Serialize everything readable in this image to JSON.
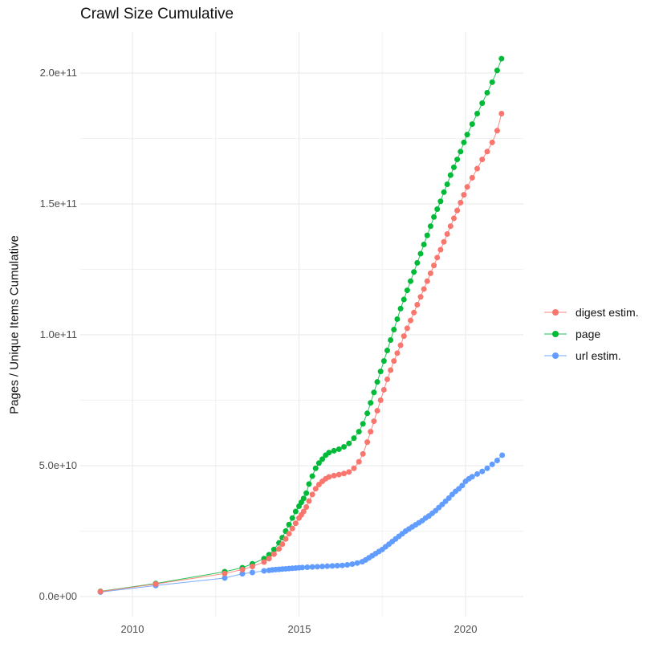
{
  "title": "Crawl Size Cumulative",
  "axes": {
    "y": {
      "title": "Pages / Unique Items Cumulative",
      "tick_labels": [
        "0.0e+00",
        "5.0e+10",
        "1.0e+11",
        "1.5e+11",
        "2.0e+11"
      ],
      "tick_values": [
        0,
        50000000000.0,
        100000000000.0,
        150000000000.0,
        200000000000.0
      ],
      "minor_values": [
        25000000000.0,
        75000000000.0,
        125000000000.0,
        175000000000.0
      ]
    },
    "x": {
      "tick_labels": [
        "2010",
        "2015",
        "2020"
      ],
      "tick_values": [
        2010,
        2015,
        2020
      ],
      "minor_values": [
        2012.5,
        2017.5
      ]
    }
  },
  "legend": {
    "items": [
      {
        "label": "digest estim.",
        "color": "#F8766D"
      },
      {
        "label": "page",
        "color": "#00BA38"
      },
      {
        "label": "url estim.",
        "color": "#619CFF"
      }
    ]
  },
  "colors": {
    "grid_major": "#e7e7e7",
    "grid_minor": "#f2f2f2",
    "background": "#ffffff"
  },
  "chart_data": {
    "type": "scatter",
    "title": "Crawl Size Cumulative",
    "xlabel": "",
    "ylabel": "Pages / Unique Items Cumulative",
    "xlim": [
      2008.4,
      2021.7
    ],
    "ylim": [
      0,
      216000000000.0
    ],
    "grid": true,
    "legend_position": "right",
    "series": [
      {
        "name": "digest estim.",
        "color": "#F8766D",
        "points": [
          [
            2009.04,
            1900000000.0
          ],
          [
            2010.7,
            4800000000.0
          ],
          [
            2012.77,
            8800000000.0
          ],
          [
            2013.3,
            10300000000.0
          ],
          [
            2013.6,
            11500000000.0
          ],
          [
            2013.95,
            13200000000.0
          ],
          [
            2014.1,
            14500000000.0
          ],
          [
            2014.25,
            16200000000.0
          ],
          [
            2014.4,
            18200000000.0
          ],
          [
            2014.5,
            20000000000.0
          ],
          [
            2014.6,
            22000000000.0
          ],
          [
            2014.7,
            24000000000.0
          ],
          [
            2014.8,
            26000000000.0
          ],
          [
            2014.9,
            28000000000.0
          ],
          [
            2015.0,
            30000000000.0
          ],
          [
            2015.07,
            31200000000.0
          ],
          [
            2015.14,
            32500000000.0
          ],
          [
            2015.22,
            34200000000.0
          ],
          [
            2015.3,
            36500000000.0
          ],
          [
            2015.4,
            39000000000.0
          ],
          [
            2015.5,
            41200000000.0
          ],
          [
            2015.6,
            42800000000.0
          ],
          [
            2015.7,
            44000000000.0
          ],
          [
            2015.8,
            45000000000.0
          ],
          [
            2015.9,
            45700000000.0
          ],
          [
            2016.05,
            46200000000.0
          ],
          [
            2016.2,
            46600000000.0
          ],
          [
            2016.35,
            47000000000.0
          ],
          [
            2016.5,
            47600000000.0
          ],
          [
            2016.65,
            49000000000.0
          ],
          [
            2016.8,
            51500000000.0
          ],
          [
            2016.92,
            54500000000.0
          ],
          [
            2017.05,
            59000000000.0
          ],
          [
            2017.15,
            63000000000.0
          ],
          [
            2017.25,
            67000000000.0
          ],
          [
            2017.35,
            71000000000.0
          ],
          [
            2017.45,
            75000000000.0
          ],
          [
            2017.55,
            79000000000.0
          ],
          [
            2017.65,
            83000000000.0
          ],
          [
            2017.75,
            86500000000.0
          ],
          [
            2017.85,
            90000000000.0
          ],
          [
            2017.95,
            93000000000.0
          ],
          [
            2018.05,
            96000000000.0
          ],
          [
            2018.15,
            99500000000.0
          ],
          [
            2018.25,
            102500000000.0
          ],
          [
            2018.35,
            105500000000.0
          ],
          [
            2018.45,
            108500000000.0
          ],
          [
            2018.55,
            111500000000.0
          ],
          [
            2018.65,
            114500000000.0
          ],
          [
            2018.75,
            117500000000.0
          ],
          [
            2018.85,
            120500000000.0
          ],
          [
            2018.95,
            123500000000.0
          ],
          [
            2019.05,
            126500000000.0
          ],
          [
            2019.15,
            129500000000.0
          ],
          [
            2019.25,
            132500000000.0
          ],
          [
            2019.35,
            135500000000.0
          ],
          [
            2019.45,
            138500000000.0
          ],
          [
            2019.55,
            141500000000.0
          ],
          [
            2019.65,
            144500000000.0
          ],
          [
            2019.75,
            147500000000.0
          ],
          [
            2019.85,
            150500000000.0
          ],
          [
            2019.95,
            153500000000.0
          ],
          [
            2020.05,
            156500000000.0
          ],
          [
            2020.2,
            160000000000.0
          ],
          [
            2020.35,
            163500000000.0
          ],
          [
            2020.5,
            167000000000.0
          ],
          [
            2020.65,
            170000000000.0
          ],
          [
            2020.8,
            173500000000.0
          ],
          [
            2020.95,
            178000000000.0
          ],
          [
            2021.08,
            184500000000.0
          ]
        ]
      },
      {
        "name": "page",
        "color": "#00BA38",
        "points": [
          [
            2009.04,
            2000000000.0
          ],
          [
            2010.7,
            5000000000.0
          ],
          [
            2012.77,
            9500000000.0
          ],
          [
            2013.3,
            11000000000.0
          ],
          [
            2013.6,
            12500000000.0
          ],
          [
            2013.95,
            14500000000.0
          ],
          [
            2014.1,
            16000000000.0
          ],
          [
            2014.25,
            18000000000.0
          ],
          [
            2014.4,
            20500000000.0
          ],
          [
            2014.5,
            22500000000.0
          ],
          [
            2014.6,
            25000000000.0
          ],
          [
            2014.7,
            27500000000.0
          ],
          [
            2014.8,
            30000000000.0
          ],
          [
            2014.9,
            32500000000.0
          ],
          [
            2015.0,
            34500000000.0
          ],
          [
            2015.07,
            36000000000.0
          ],
          [
            2015.14,
            37500000000.0
          ],
          [
            2015.22,
            39500000000.0
          ],
          [
            2015.3,
            43000000000.0
          ],
          [
            2015.4,
            46000000000.0
          ],
          [
            2015.5,
            49000000000.0
          ],
          [
            2015.6,
            51000000000.0
          ],
          [
            2015.7,
            52500000000.0
          ],
          [
            2015.8,
            54000000000.0
          ],
          [
            2015.9,
            55000000000.0
          ],
          [
            2016.05,
            55700000000.0
          ],
          [
            2016.2,
            56300000000.0
          ],
          [
            2016.35,
            57200000000.0
          ],
          [
            2016.5,
            58500000000.0
          ],
          [
            2016.65,
            60500000000.0
          ],
          [
            2016.8,
            63000000000.0
          ],
          [
            2016.92,
            66000000000.0
          ],
          [
            2017.05,
            70000000000.0
          ],
          [
            2017.15,
            74000000000.0
          ],
          [
            2017.25,
            78000000000.0
          ],
          [
            2017.35,
            82000000000.0
          ],
          [
            2017.45,
            86000000000.0
          ],
          [
            2017.55,
            90000000000.0
          ],
          [
            2017.65,
            94000000000.0
          ],
          [
            2017.75,
            98000000000.0
          ],
          [
            2017.85,
            102000000000.0
          ],
          [
            2017.95,
            106000000000.0
          ],
          [
            2018.05,
            110000000000.0
          ],
          [
            2018.15,
            113500000000.0
          ],
          [
            2018.25,
            117000000000.0
          ],
          [
            2018.35,
            120500000000.0
          ],
          [
            2018.45,
            124000000000.0
          ],
          [
            2018.55,
            127500000000.0
          ],
          [
            2018.65,
            131000000000.0
          ],
          [
            2018.75,
            134500000000.0
          ],
          [
            2018.85,
            138000000000.0
          ],
          [
            2018.95,
            141500000000.0
          ],
          [
            2019.05,
            145000000000.0
          ],
          [
            2019.15,
            148000000000.0
          ],
          [
            2019.25,
            151000000000.0
          ],
          [
            2019.35,
            154500000000.0
          ],
          [
            2019.45,
            157500000000.0
          ],
          [
            2019.55,
            161000000000.0
          ],
          [
            2019.65,
            164000000000.0
          ],
          [
            2019.75,
            167000000000.0
          ],
          [
            2019.85,
            170000000000.0
          ],
          [
            2019.95,
            173500000000.0
          ],
          [
            2020.05,
            176500000000.0
          ],
          [
            2020.2,
            180500000000.0
          ],
          [
            2020.35,
            184500000000.0
          ],
          [
            2020.5,
            188500000000.0
          ],
          [
            2020.65,
            192500000000.0
          ],
          [
            2020.8,
            196500000000.0
          ],
          [
            2020.95,
            201000000000.0
          ],
          [
            2021.08,
            205500000000.0
          ]
        ]
      },
      {
        "name": "url estim.",
        "color": "#619CFF",
        "points": [
          [
            2009.04,
            1700000000.0
          ],
          [
            2010.7,
            4200000000.0
          ],
          [
            2012.77,
            7100000000.0
          ],
          [
            2013.3,
            8700000000.0
          ],
          [
            2013.6,
            9200000000.0
          ],
          [
            2013.95,
            9800000000.0
          ],
          [
            2014.1,
            10000000000.0
          ],
          [
            2014.2,
            10200000000.0
          ],
          [
            2014.3,
            10300000000.0
          ],
          [
            2014.4,
            10400000000.0
          ],
          [
            2014.5,
            10500000000.0
          ],
          [
            2014.6,
            10600000000.0
          ],
          [
            2014.7,
            10700000000.0
          ],
          [
            2014.8,
            10800000000.0
          ],
          [
            2014.9,
            10900000000.0
          ],
          [
            2015.0,
            11000000000.0
          ],
          [
            2015.1,
            11100000000.0
          ],
          [
            2015.25,
            11200000000.0
          ],
          [
            2015.4,
            11300000000.0
          ],
          [
            2015.55,
            11400000000.0
          ],
          [
            2015.7,
            11500000000.0
          ],
          [
            2015.85,
            11600000000.0
          ],
          [
            2016.0,
            11700000000.0
          ],
          [
            2016.15,
            11800000000.0
          ],
          [
            2016.3,
            11900000000.0
          ],
          [
            2016.45,
            12100000000.0
          ],
          [
            2016.6,
            12400000000.0
          ],
          [
            2016.75,
            12800000000.0
          ],
          [
            2016.9,
            13300000000.0
          ],
          [
            2017.0,
            14000000000.0
          ],
          [
            2017.1,
            14800000000.0
          ],
          [
            2017.2,
            15600000000.0
          ],
          [
            2017.3,
            16400000000.0
          ],
          [
            2017.4,
            17200000000.0
          ],
          [
            2017.5,
            18000000000.0
          ],
          [
            2017.6,
            19000000000.0
          ],
          [
            2017.7,
            20000000000.0
          ],
          [
            2017.8,
            21000000000.0
          ],
          [
            2017.9,
            22000000000.0
          ],
          [
            2018.0,
            23000000000.0
          ],
          [
            2018.1,
            24000000000.0
          ],
          [
            2018.2,
            25000000000.0
          ],
          [
            2018.3,
            25800000000.0
          ],
          [
            2018.4,
            26600000000.0
          ],
          [
            2018.5,
            27400000000.0
          ],
          [
            2018.6,
            28200000000.0
          ],
          [
            2018.7,
            29000000000.0
          ],
          [
            2018.8,
            30000000000.0
          ],
          [
            2018.9,
            30800000000.0
          ],
          [
            2019.0,
            31800000000.0
          ],
          [
            2019.1,
            32800000000.0
          ],
          [
            2019.2,
            34000000000.0
          ],
          [
            2019.3,
            35200000000.0
          ],
          [
            2019.4,
            36400000000.0
          ],
          [
            2019.5,
            37600000000.0
          ],
          [
            2019.6,
            39000000000.0
          ],
          [
            2019.7,
            40200000000.0
          ],
          [
            2019.8,
            41200000000.0
          ],
          [
            2019.9,
            42400000000.0
          ],
          [
            2020.0,
            44000000000.0
          ],
          [
            2020.1,
            45000000000.0
          ],
          [
            2020.2,
            45800000000.0
          ],
          [
            2020.35,
            46800000000.0
          ],
          [
            2020.5,
            47800000000.0
          ],
          [
            2020.65,
            49000000000.0
          ],
          [
            2020.8,
            50500000000.0
          ],
          [
            2020.95,
            52000000000.0
          ],
          [
            2021.1,
            54000000000.0
          ]
        ]
      }
    ]
  }
}
